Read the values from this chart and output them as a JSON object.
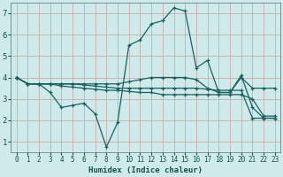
{
  "xlabel": "Humidex (Indice chaleur)",
  "bg_color": "#ceeaea",
  "grid_color": "#b8d8d8",
  "line_color": "#1a6060",
  "xlim": [
    -0.5,
    23.5
  ],
  "ylim": [
    0.5,
    7.5
  ],
  "xticks": [
    0,
    1,
    2,
    3,
    4,
    5,
    6,
    7,
    8,
    9,
    10,
    11,
    12,
    13,
    14,
    15,
    16,
    17,
    18,
    19,
    20,
    21,
    22,
    23
  ],
  "yticks": [
    1,
    2,
    3,
    4,
    5,
    6,
    7
  ],
  "lines": [
    {
      "x": [
        0,
        1,
        2,
        3,
        4,
        5,
        6,
        7,
        8,
        9,
        10,
        11,
        12,
        13,
        14,
        15,
        16,
        17,
        18,
        19,
        20,
        21,
        22,
        23
      ],
      "y": [
        4.0,
        3.7,
        3.7,
        3.3,
        2.6,
        2.7,
        2.8,
        2.3,
        0.75,
        1.9,
        5.5,
        5.75,
        6.5,
        6.65,
        7.25,
        7.1,
        4.45,
        4.8,
        3.3,
        3.3,
        4.1,
        2.6,
        2.1,
        2.1
      ]
    },
    {
      "x": [
        0,
        1,
        2,
        3,
        4,
        5,
        6,
        7,
        8,
        9,
        10,
        11,
        12,
        13,
        14,
        15,
        16,
        17,
        18,
        19,
        20,
        21,
        22,
        23
      ],
      "y": [
        4.0,
        3.7,
        3.7,
        3.7,
        3.7,
        3.7,
        3.7,
        3.7,
        3.7,
        3.7,
        3.8,
        3.9,
        4.0,
        4.0,
        4.0,
        4.0,
        3.9,
        3.5,
        3.3,
        3.3,
        4.0,
        3.5,
        3.5,
        3.5
      ]
    },
    {
      "x": [
        0,
        1,
        2,
        3,
        4,
        5,
        6,
        7,
        8,
        9,
        10,
        11,
        12,
        13,
        14,
        15,
        16,
        17,
        18,
        19,
        20,
        21,
        22,
        23
      ],
      "y": [
        4.0,
        3.7,
        3.7,
        3.7,
        3.6,
        3.55,
        3.5,
        3.45,
        3.4,
        3.4,
        3.35,
        3.3,
        3.3,
        3.2,
        3.2,
        3.2,
        3.2,
        3.2,
        3.2,
        3.2,
        3.2,
        3.0,
        2.2,
        2.2
      ]
    },
    {
      "x": [
        0,
        1,
        2,
        3,
        4,
        5,
        6,
        7,
        8,
        9,
        10,
        11,
        12,
        13,
        14,
        15,
        16,
        17,
        18,
        19,
        20,
        21,
        22,
        23
      ],
      "y": [
        4.0,
        3.7,
        3.7,
        3.7,
        3.7,
        3.7,
        3.65,
        3.6,
        3.55,
        3.5,
        3.5,
        3.5,
        3.5,
        3.5,
        3.5,
        3.5,
        3.5,
        3.45,
        3.4,
        3.4,
        3.4,
        2.1,
        2.1,
        2.1
      ]
    }
  ]
}
